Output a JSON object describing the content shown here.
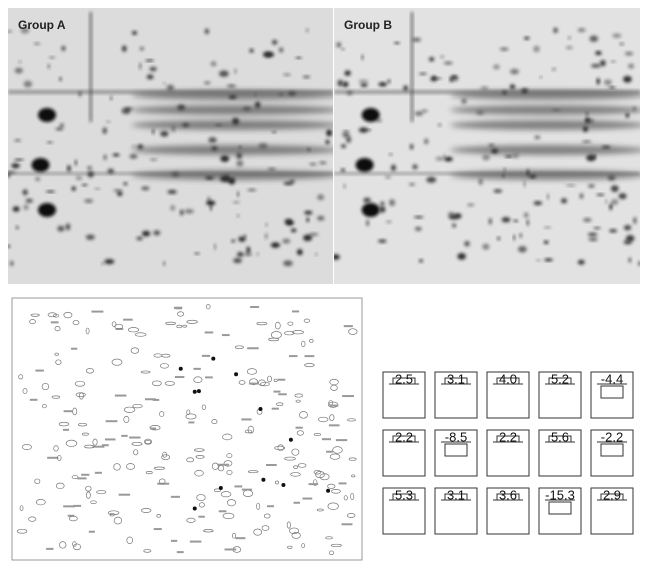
{
  "panels": {
    "group_a": "Group A",
    "group_b": "Group B"
  },
  "fold_changes": [
    "2.5",
    "3.1",
    "4.0",
    "5.2",
    "-4.4",
    "2.2",
    "-8.5",
    "2.2",
    "5.6",
    "-2.2",
    "5.3",
    "3.1",
    "3.6",
    "-15.3",
    "2.9"
  ]
}
